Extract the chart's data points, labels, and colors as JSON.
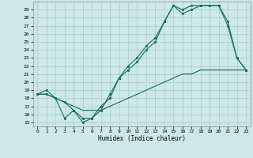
{
  "xlabel": "Humidex (Indice chaleur)",
  "bg_color": "#cce8e8",
  "grid_color": "#aacccc",
  "line_color": "#1a6b5a",
  "xlim": [
    -0.5,
    23.5
  ],
  "ylim": [
    14.5,
    30.0
  ],
  "xticks": [
    0,
    1,
    2,
    3,
    4,
    5,
    6,
    7,
    8,
    9,
    10,
    11,
    12,
    13,
    14,
    15,
    16,
    17,
    18,
    19,
    20,
    21,
    22,
    23
  ],
  "yticks": [
    15,
    16,
    17,
    18,
    19,
    20,
    21,
    22,
    23,
    24,
    25,
    26,
    27,
    28,
    29
  ],
  "line1_x": [
    0,
    1,
    2,
    3,
    4,
    5,
    6,
    7,
    8,
    9,
    10,
    11,
    12,
    13,
    14,
    15,
    16,
    17,
    18,
    19,
    20,
    21,
    22,
    23
  ],
  "line1_y": [
    18.5,
    19.0,
    18.0,
    15.5,
    16.5,
    15.0,
    15.5,
    16.5,
    18.5,
    20.5,
    21.5,
    22.5,
    24.0,
    25.0,
    27.5,
    29.5,
    28.5,
    29.0,
    29.5,
    29.5,
    29.5,
    27.0,
    23.0,
    21.5
  ],
  "line2_x": [
    0,
    1,
    2,
    3,
    4,
    5,
    6,
    7,
    8,
    9,
    10,
    11,
    12,
    13,
    14,
    15,
    16,
    17,
    18,
    19,
    20,
    21,
    22,
    23
  ],
  "line2_y": [
    18.5,
    18.5,
    18.0,
    17.5,
    16.5,
    15.5,
    15.5,
    17.0,
    18.0,
    20.5,
    22.0,
    23.0,
    24.5,
    25.5,
    27.5,
    29.5,
    29.0,
    29.5,
    29.5,
    29.5,
    29.5,
    27.5,
    23.0,
    21.5
  ],
  "line3_x": [
    0,
    1,
    2,
    3,
    4,
    5,
    6,
    7,
    8,
    9,
    10,
    11,
    12,
    13,
    14,
    15,
    16,
    17,
    18,
    19,
    20,
    21,
    22,
    23
  ],
  "line3_y": [
    18.5,
    18.5,
    18.0,
    17.5,
    17.0,
    16.5,
    16.5,
    16.5,
    17.0,
    17.5,
    18.0,
    18.5,
    19.0,
    19.5,
    20.0,
    20.5,
    21.0,
    21.0,
    21.5,
    21.5,
    21.5,
    21.5,
    21.5,
    21.5
  ]
}
